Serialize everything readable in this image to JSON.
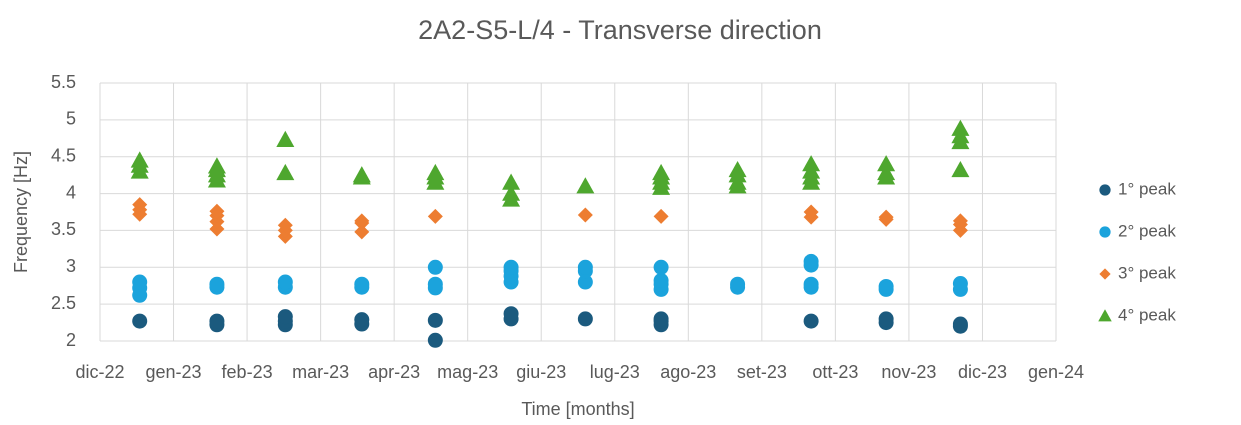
{
  "chart_data": {
    "type": "scatter",
    "title": "2A2-S5-L/4 - Transverse direction",
    "xlabel": "Time [months]",
    "ylabel": "Frequency [Hz]",
    "xlim": [
      0,
      13
    ],
    "xticks": [
      {
        "value": 0,
        "label": "dic-22"
      },
      {
        "value": 1,
        "label": "gen-23"
      },
      {
        "value": 2,
        "label": "feb-23"
      },
      {
        "value": 3,
        "label": "mar-23"
      },
      {
        "value": 4,
        "label": "apr-23"
      },
      {
        "value": 5,
        "label": "mag-23"
      },
      {
        "value": 6,
        "label": "giu-23"
      },
      {
        "value": 7,
        "label": "lug-23"
      },
      {
        "value": 8,
        "label": "ago-23"
      },
      {
        "value": 9,
        "label": "set-23"
      },
      {
        "value": 10,
        "label": "ott-23"
      },
      {
        "value": 11,
        "label": "nov-23"
      },
      {
        "value": 12,
        "label": "dic-23"
      },
      {
        "value": 13,
        "label": "gen-24"
      }
    ],
    "ylim": [
      2,
      5.5
    ],
    "yticks": [
      2,
      2.5,
      3,
      3.5,
      4,
      4.5,
      5,
      5.5
    ],
    "grid": true,
    "legend": "right",
    "series": [
      {
        "name": "1° peak",
        "color": "#1b5a7e",
        "marker": "circle",
        "x": [
          0.54,
          1.59,
          1.59,
          2.52,
          2.52,
          2.52,
          3.56,
          3.56,
          4.56,
          4.56,
          5.59,
          5.59,
          6.6,
          7.63,
          7.63,
          7.63,
          9.67,
          10.69,
          10.69,
          11.7,
          11.7
        ],
        "values": [
          2.27,
          2.22,
          2.27,
          2.22,
          2.27,
          2.33,
          2.23,
          2.29,
          2.01,
          2.28,
          2.3,
          2.37,
          2.3,
          2.22,
          2.27,
          2.3,
          2.27,
          2.25,
          2.3,
          2.2,
          2.23
        ]
      },
      {
        "name": "2° peak",
        "color": "#1ba3dc",
        "marker": "circle",
        "x": [
          0.54,
          0.54,
          0.54,
          1.59,
          1.59,
          2.52,
          2.52,
          3.56,
          3.56,
          4.56,
          4.56,
          4.56,
          5.59,
          5.59,
          5.59,
          5.59,
          6.6,
          6.6,
          6.6,
          7.63,
          7.63,
          7.63,
          7.63,
          8.67,
          8.67,
          9.67,
          9.67,
          9.67,
          9.67,
          10.69,
          10.69,
          11.7,
          11.7
        ],
        "values": [
          2.62,
          2.72,
          2.8,
          2.73,
          2.77,
          2.73,
          2.8,
          2.73,
          2.77,
          2.72,
          2.77,
          3.0,
          2.8,
          2.88,
          2.95,
          3.0,
          2.8,
          2.95,
          3.0,
          2.7,
          2.77,
          2.82,
          3.0,
          2.73,
          2.77,
          2.73,
          2.77,
          3.03,
          3.08,
          2.7,
          2.74,
          2.7,
          2.78
        ]
      },
      {
        "name": "3° peak",
        "color": "#ed7d31",
        "marker": "diamond",
        "x": [
          0.54,
          0.54,
          0.54,
          1.59,
          1.59,
          1.59,
          1.59,
          2.52,
          2.52,
          2.52,
          3.56,
          3.56,
          3.56,
          4.56,
          6.6,
          7.63,
          9.67,
          9.67,
          10.69,
          10.69,
          11.7,
          11.7,
          11.7
        ],
        "values": [
          3.72,
          3.78,
          3.85,
          3.52,
          3.62,
          3.7,
          3.76,
          3.42,
          3.5,
          3.57,
          3.48,
          3.6,
          3.63,
          3.69,
          3.71,
          3.69,
          3.68,
          3.75,
          3.65,
          3.68,
          3.5,
          3.58,
          3.63
        ]
      },
      {
        "name": "4° peak",
        "color": "#4ea72e",
        "marker": "triangle",
        "x": [
          0.54,
          0.54,
          0.54,
          1.59,
          1.59,
          1.59,
          1.59,
          2.52,
          2.52,
          3.56,
          3.56,
          4.56,
          4.56,
          4.56,
          5.59,
          5.59,
          5.59,
          6.6,
          7.63,
          7.63,
          7.63,
          7.63,
          8.67,
          8.67,
          8.67,
          8.67,
          9.67,
          9.67,
          9.67,
          9.67,
          10.69,
          10.69,
          10.69,
          11.7,
          11.7,
          11.7,
          11.7
        ],
        "values": [
          4.3,
          4.38,
          4.45,
          4.18,
          4.25,
          4.32,
          4.37,
          4.28,
          4.73,
          4.22,
          4.25,
          4.15,
          4.22,
          4.28,
          3.92,
          4.0,
          4.15,
          4.1,
          4.08,
          4.15,
          4.22,
          4.28,
          4.1,
          4.15,
          4.25,
          4.32,
          4.15,
          4.22,
          4.3,
          4.4,
          4.22,
          4.28,
          4.4,
          4.32,
          4.7,
          4.78,
          4.88
        ]
      }
    ]
  }
}
